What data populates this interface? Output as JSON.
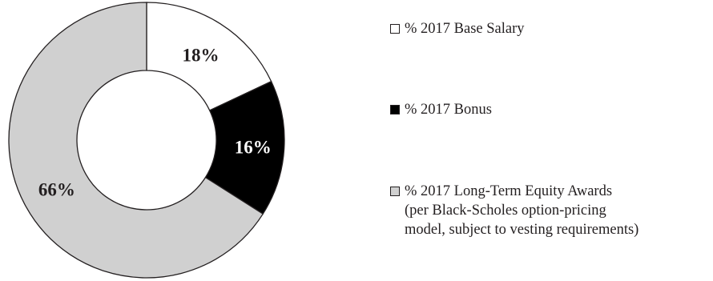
{
  "chart_data": {
    "type": "pie",
    "donut": true,
    "title": "",
    "colors": [
      "#ffffff",
      "#000000",
      "#d0d0d0"
    ],
    "outline": "#231f20",
    "slices": [
      {
        "label": "% 2017 Base Salary",
        "value": 18,
        "data_label": "18%"
      },
      {
        "label": "% 2017 Bonus",
        "value": 16,
        "data_label": "16%"
      },
      {
        "label": "% 2017 Long-Term Equity Awards",
        "value": 66,
        "data_label": "66%"
      }
    ],
    "legend": {
      "placement": "right",
      "entries": [
        {
          "lines": [
            "% 2017 Base Salary"
          ]
        },
        {
          "lines": [
            "% 2017 Bonus"
          ]
        },
        {
          "lines": [
            "% 2017 Long-Term Equity Awards",
            "(per Black-Scholes option-pricing",
            "model, subject to vesting requirements)"
          ]
        }
      ]
    }
  }
}
